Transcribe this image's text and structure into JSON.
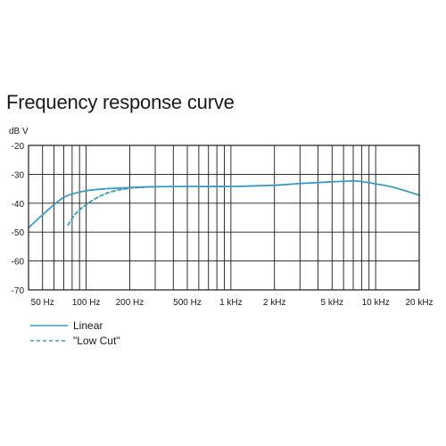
{
  "title": "Frequency response curve",
  "chart_data": {
    "type": "line",
    "title": "Frequency response curve",
    "ylabel": "dB V",
    "xlabel": "",
    "x_scale": "log",
    "xlim": [
      40,
      20000
    ],
    "ylim": [
      -70,
      -20
    ],
    "grid": true,
    "y_ticks": [
      {
        "value": -20,
        "label": "-20"
      },
      {
        "value": -30,
        "label": "-30"
      },
      {
        "value": -40,
        "label": "-40"
      },
      {
        "value": -50,
        "label": "-50"
      },
      {
        "value": -60,
        "label": "-60"
      },
      {
        "value": -70,
        "label": "-70"
      }
    ],
    "x_ticks": [
      {
        "value": 50,
        "label": "50 Hz"
      },
      {
        "value": 100,
        "label": "100 Hz"
      },
      {
        "value": 200,
        "label": "200 Hz"
      },
      {
        "value": 500,
        "label": "500 Hz"
      },
      {
        "value": 1000,
        "label": "1 kHz"
      },
      {
        "value": 2000,
        "label": "2 kHz"
      },
      {
        "value": 5000,
        "label": "5 kHz"
      },
      {
        "value": 10000,
        "label": "10 kHz"
      },
      {
        "value": 20000,
        "label": "20 kHz"
      }
    ],
    "legend_position": "bottom-left",
    "series": [
      {
        "name": "Linear",
        "color": "#3d9bc2",
        "style": "solid",
        "points": [
          [
            40,
            -48.5
          ],
          [
            50,
            -44
          ],
          [
            60,
            -40.5
          ],
          [
            70,
            -38
          ],
          [
            80,
            -36.8
          ],
          [
            100,
            -35.7
          ],
          [
            130,
            -35.1
          ],
          [
            200,
            -34.6
          ],
          [
            300,
            -34.3
          ],
          [
            500,
            -34.2
          ],
          [
            1000,
            -34.2
          ],
          [
            2000,
            -33.8
          ],
          [
            3000,
            -33.2
          ],
          [
            5000,
            -32.6
          ],
          [
            7000,
            -32.3
          ],
          [
            8000,
            -32.5
          ],
          [
            10000,
            -33.3
          ],
          [
            13000,
            -34.4
          ],
          [
            20000,
            -37.2
          ]
        ]
      },
      {
        "name": "\"Low Cut\"",
        "color": "#3d9bc2",
        "style": "dashed",
        "points": [
          [
            75,
            -47.5
          ],
          [
            85,
            -43.5
          ],
          [
            100,
            -40.5
          ],
          [
            120,
            -38
          ],
          [
            150,
            -36
          ],
          [
            200,
            -34.8
          ],
          [
            250,
            -34.5
          ]
        ]
      }
    ]
  }
}
